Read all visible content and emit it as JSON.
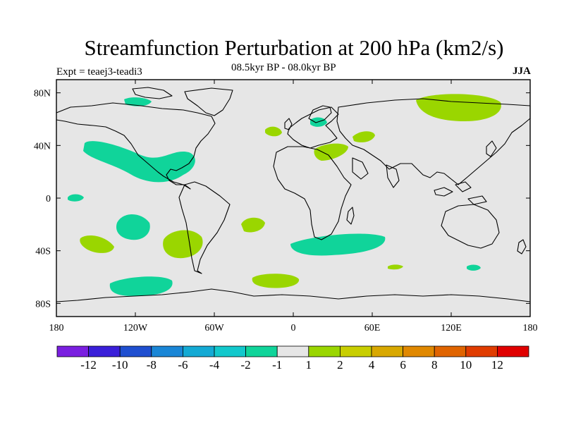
{
  "title": "Streamfunction Perturbation at 200 hPa (km2/s)",
  "expt": "Expt = teaej3-teadi3",
  "subtitle": "08.5kyr BP - 08.0kyr BP",
  "season": "JJA",
  "axes": {
    "y_ticks": [
      {
        "value": 80,
        "label": "80N"
      },
      {
        "value": 40,
        "label": "40N"
      },
      {
        "value": 0,
        "label": "0"
      },
      {
        "value": -40,
        "label": "40S"
      },
      {
        "value": -80,
        "label": "80S"
      }
    ],
    "x_ticks": [
      {
        "value": -180,
        "label": "180"
      },
      {
        "value": -120,
        "label": "120W"
      },
      {
        "value": -60,
        "label": "60W"
      },
      {
        "value": 0,
        "label": "0"
      },
      {
        "value": 60,
        "label": "60E"
      },
      {
        "value": 120,
        "label": "120E"
      },
      {
        "value": 180,
        "label": "180"
      }
    ]
  },
  "colorbar": {
    "colors": [
      "#7a1fe0",
      "#3a1fd9",
      "#1f4fd0",
      "#1a86d6",
      "#14aad4",
      "#12c8cc",
      "#10d49a",
      "#e6e6e6",
      "#9ad600",
      "#c8ce00",
      "#d8a800",
      "#e08800",
      "#e06400",
      "#e03c00",
      "#e00000"
    ],
    "labels": [
      "-12",
      "-10",
      "-8",
      "-6",
      "-4",
      "-2",
      "-1",
      "1",
      "2",
      "4",
      "6",
      "8",
      "10",
      "12"
    ]
  },
  "colors": {
    "neg_fill": "#10d49a",
    "pos_fill": "#9ad600",
    "background": "#e6e6e6"
  }
}
